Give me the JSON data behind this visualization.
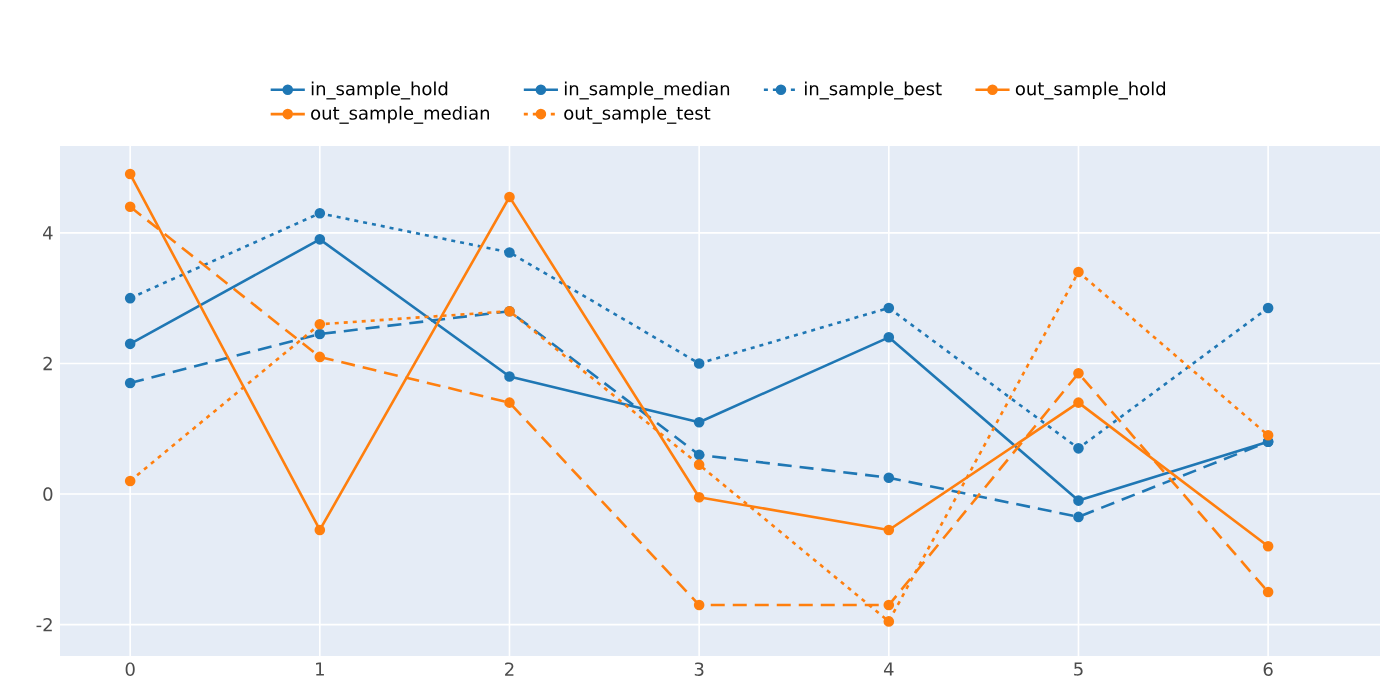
{
  "chart_data": {
    "type": "line",
    "x": [
      0,
      1,
      2,
      3,
      4,
      5,
      6
    ],
    "xlim": [
      -0.37,
      6.59
    ],
    "xticks": [
      0,
      1,
      2,
      3,
      4,
      5,
      6
    ],
    "ylim": [
      -2.48,
      5.33
    ],
    "yticks": [
      -2,
      0,
      2,
      4
    ],
    "grid": true,
    "legend": "top",
    "marker": "circle",
    "series": [
      {
        "name": "in_sample_hold",
        "color": "#1f77b4",
        "line_style": "solid",
        "values": [
          2.3,
          3.9,
          1.8,
          1.1,
          2.4,
          -0.1,
          0.8
        ]
      },
      {
        "name": "in_sample_median",
        "color": "#1f77b4",
        "line_style": "dashed",
        "values": [
          1.7,
          2.45,
          2.8,
          0.6,
          0.25,
          -0.35,
          0.8
        ]
      },
      {
        "name": "in_sample_best",
        "color": "#1f77b4",
        "line_style": "dotted",
        "values": [
          3.0,
          4.3,
          3.7,
          2.0,
          2.85,
          0.7,
          2.85
        ]
      },
      {
        "name": "out_sample_hold",
        "color": "#ff7f0e",
        "line_style": "solid",
        "values": [
          4.9,
          -0.55,
          4.55,
          -0.05,
          -0.55,
          1.4,
          -0.8
        ]
      },
      {
        "name": "out_sample_median",
        "color": "#ff7f0e",
        "line_style": "dashed",
        "values": [
          4.4,
          2.1,
          1.4,
          -1.7,
          -1.7,
          1.85,
          -1.5
        ]
      },
      {
        "name": "out_sample_test",
        "color": "#ff7f0e",
        "line_style": "dotted",
        "values": [
          0.2,
          2.6,
          2.8,
          0.45,
          -1.95,
          3.4,
          0.9
        ]
      }
    ]
  }
}
